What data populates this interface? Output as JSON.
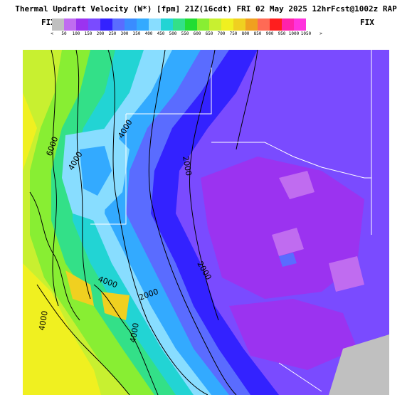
{
  "header": {
    "title": "Thermal Updraft Velocity (W*) [fpm] 21Z(16cdt) FRI 02 May 2025 12hrFcst@1002z RAP",
    "fix_left": "FIX",
    "fix_right": "FIX"
  },
  "legend": {
    "under_label": "<",
    "over_label": ">",
    "bins": [
      {
        "label": "50",
        "color": "#c0c0c0"
      },
      {
        "label": "100",
        "color": "#c06cf0"
      },
      {
        "label": "150",
        "color": "#9b33f0"
      },
      {
        "label": "200",
        "color": "#7a4bff"
      },
      {
        "label": "250",
        "color": "#3322ff"
      },
      {
        "label": "300",
        "color": "#5a6cff"
      },
      {
        "label": "350",
        "color": "#3a8cff"
      },
      {
        "label": "400",
        "color": "#33aaff"
      },
      {
        "label": "450",
        "color": "#88ddff"
      },
      {
        "label": "500",
        "color": "#22d4d4"
      },
      {
        "label": "550",
        "color": "#33e088"
      },
      {
        "label": "600",
        "color": "#22dd33"
      },
      {
        "label": "650",
        "color": "#88ee33"
      },
      {
        "label": "700",
        "color": "#c8f030"
      },
      {
        "label": "750",
        "color": "#f0f020"
      },
      {
        "label": "800",
        "color": "#f0d020"
      },
      {
        "label": "850",
        "color": "#f0a020"
      },
      {
        "label": "900",
        "color": "#ff6a55"
      },
      {
        "label": "950",
        "color": "#ff1e1e"
      },
      {
        "label": "1000",
        "color": "#ff22aa"
      },
      {
        "label": "1050",
        "color": "#ff33dd"
      }
    ]
  },
  "map": {
    "contour_labels": [
      "6000",
      "4000",
      "4000",
      "2000",
      "2000",
      "4000",
      "2000",
      "4000",
      "4000"
    ],
    "colors": {
      "background": "#ffffff",
      "contour": "#000000",
      "border": "#ffffff"
    }
  }
}
